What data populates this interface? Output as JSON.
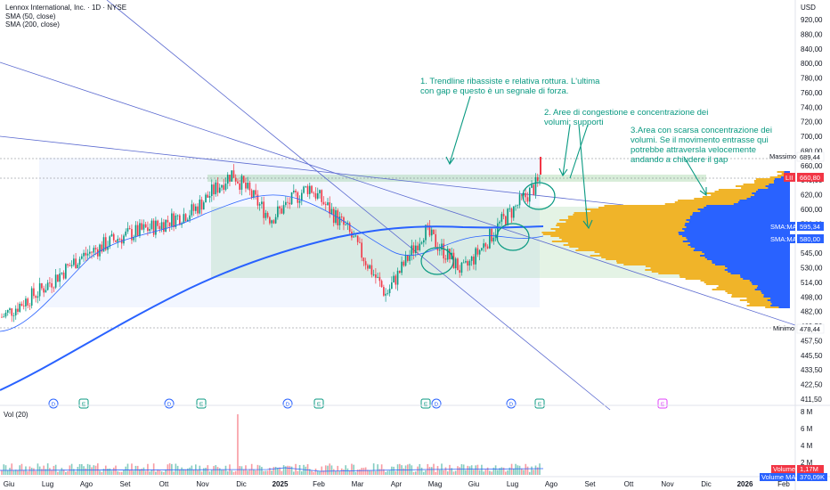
{
  "header": {
    "symbol_line": "Lennox International, Inc. · 1D · NYSE",
    "sma_fast": "SMA (50, close)",
    "sma_slow": "SMA (200, close)",
    "currency": "USD"
  },
  "annotations": [
    "1. Trendline ribassiste e relativa rottura. L'ultima\ncon gap e questo è un segnale di forza.",
    "2. Aree di congestione e concentrazione dei\nvolumi: supporti",
    "3.Area con scarsa concentrazione dei\nvolumi. Se il movimento entrasse qui\npotrebbe attraversla velocemente\nandando a chiudere il gap"
  ],
  "price_tags": {
    "high_label": "Massimo",
    "high_value": "689,44",
    "last_label": "LII",
    "last_value": "660,80",
    "sma_label_1": "SMA:MA",
    "sma_value_1": "595,34",
    "sma_label_2": "SMA:MA",
    "sma_value_2": "580,00",
    "low_label": "Minimo",
    "low_value": "478,44"
  },
  "volume": {
    "label": "Vol (20)",
    "ticks": [
      "8 M",
      "6 M",
      "4 M",
      "2 M"
    ],
    "volume_tag_label": "Volume",
    "volume_tag_value": "1,17M",
    "volume_ma_label": "Volume MA",
    "volume_ma_value": "370,09K"
  },
  "events": [
    "D",
    "E",
    "D",
    "E",
    "D",
    "E",
    "E",
    "D",
    "D",
    "E",
    "E"
  ],
  "chart_data": {
    "type": "candlestick",
    "y_axis_ticks": [
      "920,00",
      "880,00",
      "840,00",
      "800,00",
      "780,00",
      "760,00",
      "740,00",
      "720,00",
      "700,00",
      "680,00",
      "660,00",
      "640,00",
      "620,00",
      "600,00",
      "580,00",
      "560,00",
      "545,00",
      "530,00",
      "514,00",
      "498,00",
      "482,00",
      "469,50",
      "457,50",
      "445,50",
      "433,50",
      "422,50",
      "411,50"
    ],
    "x_axis_ticks": [
      "Giu",
      "Lug",
      "Ago",
      "Set",
      "Ott",
      "Nov",
      "Dic",
      "2025",
      "Feb",
      "Mar",
      "Apr",
      "Mag",
      "Giu",
      "Lug",
      "Ago",
      "Set",
      "Ott",
      "Nov",
      "Dic",
      "2026",
      "Feb"
    ],
    "approx_close_path": [
      {
        "x": "Giu",
        "y": 492
      },
      {
        "x": "Lug",
        "y": 525
      },
      {
        "x": "Ago",
        "y": 565
      },
      {
        "x": "Set",
        "y": 590
      },
      {
        "x": "Ott",
        "y": 605
      },
      {
        "x": "Nov",
        "y": 625
      },
      {
        "x": "Dic",
        "y": 672
      },
      {
        "x": "2025",
        "y": 615
      },
      {
        "x": "Feb",
        "y": 655
      },
      {
        "x": "Mar",
        "y": 600
      },
      {
        "x": "Apr",
        "y": 520
      },
      {
        "x": "Mag",
        "y": 600
      },
      {
        "x": "Giu",
        "y": 548
      },
      {
        "x": "Lug",
        "y": 610
      },
      {
        "x": "Ago",
        "y": 660.8
      }
    ],
    "high": 689.44,
    "low": 478.44,
    "last": 660.8,
    "sma50_last": 595.34,
    "sma200_last": 580.0
  }
}
